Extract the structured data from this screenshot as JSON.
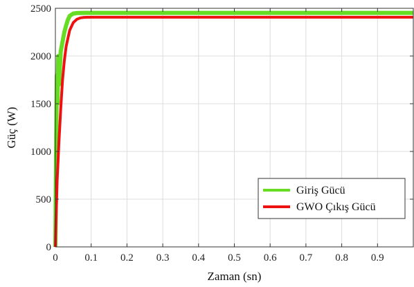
{
  "chart_data": {
    "type": "line",
    "xlabel": "Zaman (sn)",
    "ylabel": "Güç (W)",
    "xlim": [
      0,
      1.0
    ],
    "ylim": [
      0,
      2500
    ],
    "x_ticks": [
      0,
      0.1,
      0.2,
      0.3,
      0.4,
      0.5,
      0.6,
      0.7,
      0.8,
      0.9
    ],
    "x_tick_labels": [
      "0",
      "0.1",
      "0.2",
      "0.3",
      "0.4",
      "0.5",
      "0.6",
      "0.7",
      "0.8",
      "0.9"
    ],
    "y_ticks": [
      0,
      500,
      1000,
      1500,
      2000,
      2500
    ],
    "y_tick_labels": [
      "0",
      "500",
      "1000",
      "1500",
      "2000",
      "2500"
    ],
    "grid": true,
    "legend_position": "bottom-right",
    "series": [
      {
        "name": "Giriş Gücü",
        "color": "#66dd22",
        "x": [
          0,
          0.002,
          0.004,
          0.006,
          0.008,
          0.01,
          0.015,
          0.02,
          0.025,
          0.03,
          0.035,
          0.04,
          0.05,
          0.06,
          0.08,
          0.1,
          1.0
        ],
        "y": [
          0,
          1000,
          1800,
          1500,
          2000,
          1700,
          2050,
          2150,
          2250,
          2320,
          2380,
          2420,
          2445,
          2450,
          2452,
          2452,
          2452
        ]
      },
      {
        "name": "GWO Çıkış Gücü",
        "color": "#ee1111",
        "x": [
          0,
          0.002,
          0.005,
          0.01,
          0.015,
          0.02,
          0.025,
          0.03,
          0.04,
          0.05,
          0.06,
          0.07,
          0.08,
          0.1,
          1.0
        ],
        "y": [
          0,
          300,
          700,
          1100,
          1450,
          1750,
          1950,
          2100,
          2270,
          2350,
          2385,
          2400,
          2405,
          2407,
          2407
        ]
      }
    ]
  }
}
